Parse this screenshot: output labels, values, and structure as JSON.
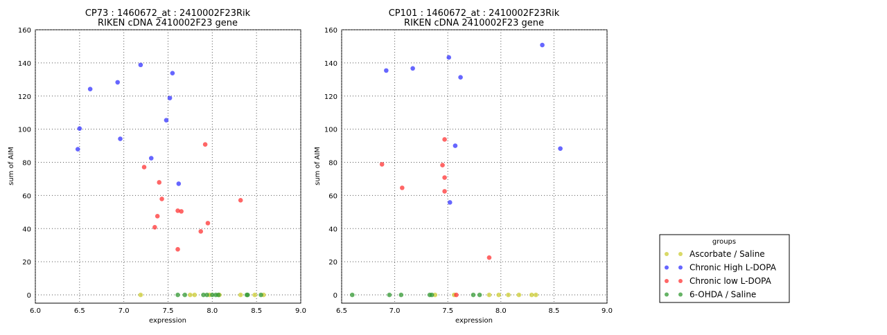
{
  "chart_data": [
    {
      "type": "scatter",
      "title": "CP73 : 1460672_at : 2410002F23Rik",
      "subtitle": "RIKEN cDNA 2410002F23 gene",
      "xlabel": "expression",
      "ylabel": "sum of AIM",
      "xlim": [
        6.0,
        9.0
      ],
      "ylim": [
        -5,
        160
      ],
      "xticks": [
        "6.0",
        "6.5",
        "7.0",
        "7.5",
        "8.0",
        "8.5",
        "9.0"
      ],
      "yticks": [
        "0",
        "20",
        "40",
        "60",
        "80",
        "100",
        "120",
        "140",
        "160"
      ],
      "grid": true,
      "series": [
        {
          "name": "Ascorbate / Saline",
          "color": "#cccc33",
          "points": [
            [
              7.19,
              0
            ],
            [
              7.75,
              0
            ],
            [
              7.8,
              0
            ],
            [
              7.97,
              0
            ],
            [
              8.08,
              0
            ],
            [
              8.32,
              0
            ],
            [
              8.48,
              0
            ],
            [
              8.58,
              0
            ]
          ]
        },
        {
          "name": "Chronic High L-DOPA",
          "color": "#3333ff",
          "points": [
            [
              6.62,
              124.2
            ],
            [
              6.5,
              100.4
            ],
            [
              6.48,
              87.9
            ],
            [
              6.93,
              128.3
            ],
            [
              6.96,
              94.2
            ],
            [
              7.19,
              138.8
            ],
            [
              7.31,
              82.5
            ],
            [
              7.55,
              133.8
            ],
            [
              7.52,
              118.8
            ],
            [
              7.48,
              105.4
            ],
            [
              7.62,
              67.1
            ]
          ]
        },
        {
          "name": "Chronic low L-DOPA",
          "color": "#ff3333",
          "points": [
            [
              7.23,
              77.1
            ],
            [
              7.4,
              67.9
            ],
            [
              7.43,
              57.9
            ],
            [
              7.38,
              47.5
            ],
            [
              7.35,
              40.8
            ],
            [
              7.61,
              50.8
            ],
            [
              7.65,
              50.4
            ],
            [
              7.61,
              27.5
            ],
            [
              7.92,
              90.8
            ],
            [
              7.95,
              43.3
            ],
            [
              7.87,
              38.3
            ],
            [
              8.32,
              57.1
            ]
          ]
        },
        {
          "name": "6-OHDA / Saline",
          "color": "#339933",
          "points": [
            [
              7.61,
              0
            ],
            [
              7.69,
              0
            ],
            [
              7.9,
              0
            ],
            [
              7.94,
              0
            ],
            [
              8.0,
              0
            ],
            [
              8.04,
              0
            ],
            [
              8.07,
              0
            ],
            [
              8.39,
              0
            ],
            [
              8.4,
              0
            ],
            [
              8.55,
              0
            ]
          ]
        }
      ]
    },
    {
      "type": "scatter",
      "title": "CP101 : 1460672_at : 2410002F23Rik",
      "subtitle": "RIKEN cDNA 2410002F23 gene",
      "xlabel": "expression",
      "ylabel": "sum of AIM",
      "xlim": [
        6.5,
        9.0
      ],
      "ylim": [
        -5,
        160
      ],
      "xticks": [
        "6.5",
        "7.0",
        "7.5",
        "8.0",
        "8.5",
        "9.0"
      ],
      "yticks": [
        "0",
        "20",
        "40",
        "60",
        "80",
        "100",
        "120",
        "140",
        "160"
      ],
      "grid": true,
      "series": [
        {
          "name": "Ascorbate / Saline",
          "color": "#cccc33",
          "points": [
            [
              7.38,
              0
            ],
            [
              7.56,
              0
            ],
            [
              7.89,
              0
            ],
            [
              7.98,
              0
            ],
            [
              8.07,
              0
            ],
            [
              8.17,
              0
            ],
            [
              8.29,
              0
            ],
            [
              8.33,
              0
            ]
          ]
        },
        {
          "name": "Chronic High L-DOPA",
          "color": "#3333ff",
          "points": [
            [
              6.92,
              135.4
            ],
            [
              7.17,
              136.7
            ],
            [
              7.51,
              143.3
            ],
            [
              7.62,
              131.3
            ],
            [
              8.39,
              150.8
            ],
            [
              8.56,
              88.3
            ],
            [
              7.57,
              90.0
            ],
            [
              7.52,
              55.8
            ]
          ]
        },
        {
          "name": "Chronic low L-DOPA",
          "color": "#ff3333",
          "points": [
            [
              6.88,
              78.8
            ],
            [
              7.07,
              64.6
            ],
            [
              7.47,
              93.8
            ],
            [
              7.45,
              78.3
            ],
            [
              7.47,
              70.8
            ],
            [
              7.47,
              62.5
            ],
            [
              7.89,
              22.5
            ],
            [
              7.58,
              0
            ]
          ]
        },
        {
          "name": "6-OHDA / Saline",
          "color": "#339933",
          "points": [
            [
              6.6,
              0
            ],
            [
              6.95,
              0
            ],
            [
              7.06,
              0
            ],
            [
              7.33,
              0
            ],
            [
              7.35,
              0
            ],
            [
              7.74,
              0
            ],
            [
              7.8,
              0
            ]
          ]
        }
      ]
    }
  ],
  "legend": {
    "title": "groups",
    "placement": "bottom-right",
    "items": [
      "Ascorbate / Saline",
      "Chronic High L-DOPA",
      "Chronic low L-DOPA",
      "6-OHDA / Saline"
    ]
  }
}
